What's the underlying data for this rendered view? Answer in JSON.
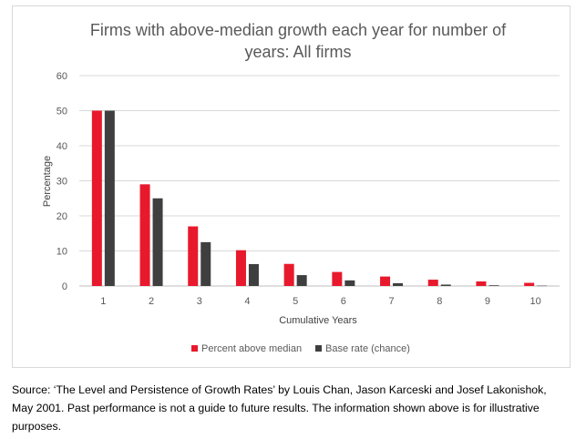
{
  "chart_data": {
    "type": "bar",
    "title_line1": "Firms with above-median growth each year for number of",
    "title_line2": "years: All firms",
    "xlabel": "Cumulative Years",
    "ylabel": "Percentage",
    "categories": [
      "1",
      "2",
      "3",
      "4",
      "5",
      "6",
      "7",
      "8",
      "9",
      "10"
    ],
    "series": [
      {
        "name": "Percent above median",
        "color": "#e8192c",
        "values": [
          50,
          29,
          17,
          10.2,
          6.3,
          4,
          2.7,
          1.8,
          1.3,
          0.9
        ]
      },
      {
        "name": "Base rate (chance)",
        "color": "#3f3f3f",
        "values": [
          50,
          25,
          12.5,
          6.25,
          3.1,
          1.6,
          0.8,
          0.4,
          0.2,
          0.1
        ]
      }
    ],
    "ylim": [
      0,
      60
    ],
    "yticks": [
      0,
      10,
      20,
      30,
      40,
      50,
      60
    ],
    "grid": true,
    "legend_position": "bottom"
  },
  "source_note": "Source: ‘The Level and Persistence of Growth Rates’ by Louis Chan, Jason Karceski and Josef Lakonishok, May 2001. Past performance is not a guide to future results. The information shown above is for illustrative purposes."
}
